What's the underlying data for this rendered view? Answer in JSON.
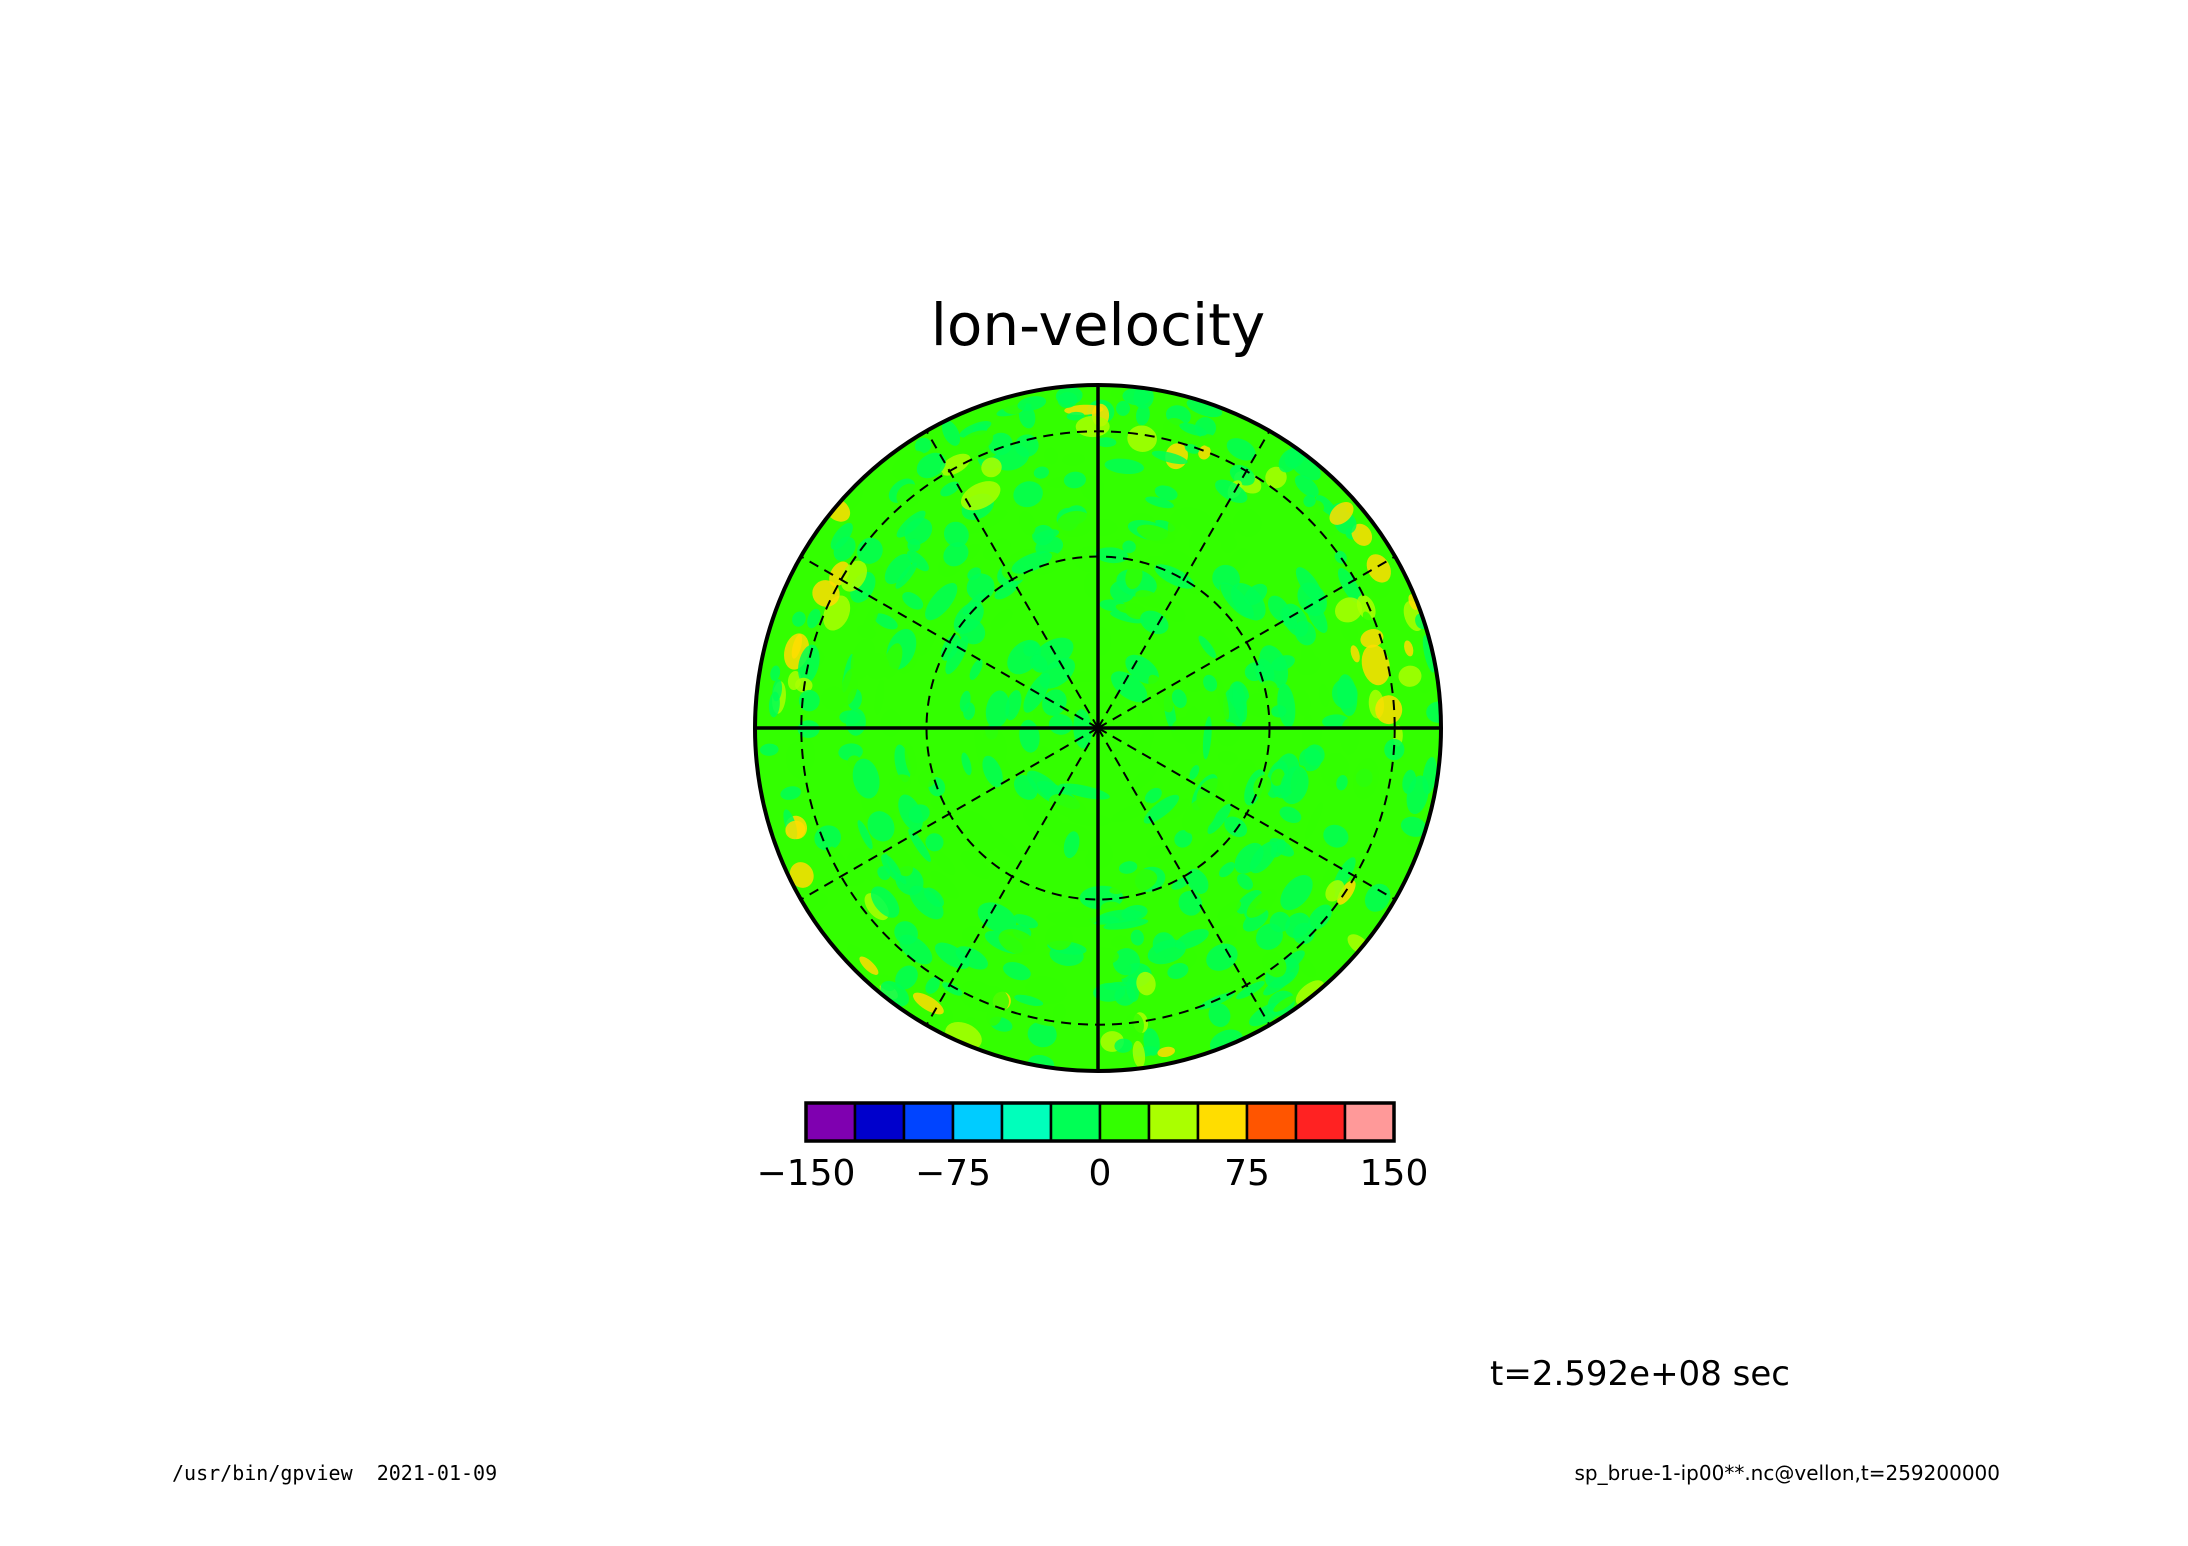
{
  "chart_data": {
    "type": "heatmap",
    "projection": "polar-stereographic",
    "title": "lon-velocity",
    "field_note": "predominantly near-zero values with scattered small-scale positive and negative cells",
    "typical_range": [
      -25,
      50
    ],
    "colorbar": {
      "levels": [
        -150,
        -125,
        -100,
        -75,
        -50,
        -25,
        0,
        25,
        50,
        75,
        100,
        125,
        150
      ],
      "colors": [
        "#7f00b0",
        "#0000cc",
        "#0044ff",
        "#00ccff",
        "#00ffbb",
        "#00ff55",
        "#33ff00",
        "#aaff00",
        "#ffdd00",
        "#ff5500",
        "#ff2222",
        "#ff9999"
      ],
      "tick_labels": [
        "−150",
        "−75",
        "0",
        "75",
        "150"
      ]
    },
    "grid": {
      "meridians_dashed": 12,
      "latitude_circles_dashed": 2,
      "solid_axes": true
    }
  },
  "annotations": {
    "time_label": "t=2.592e+08 sec",
    "footer_left": "/usr/bin/gpview  2021-01-09",
    "footer_right": "sp_brue-1-ip00**.nc@vellon,t=259200000"
  }
}
